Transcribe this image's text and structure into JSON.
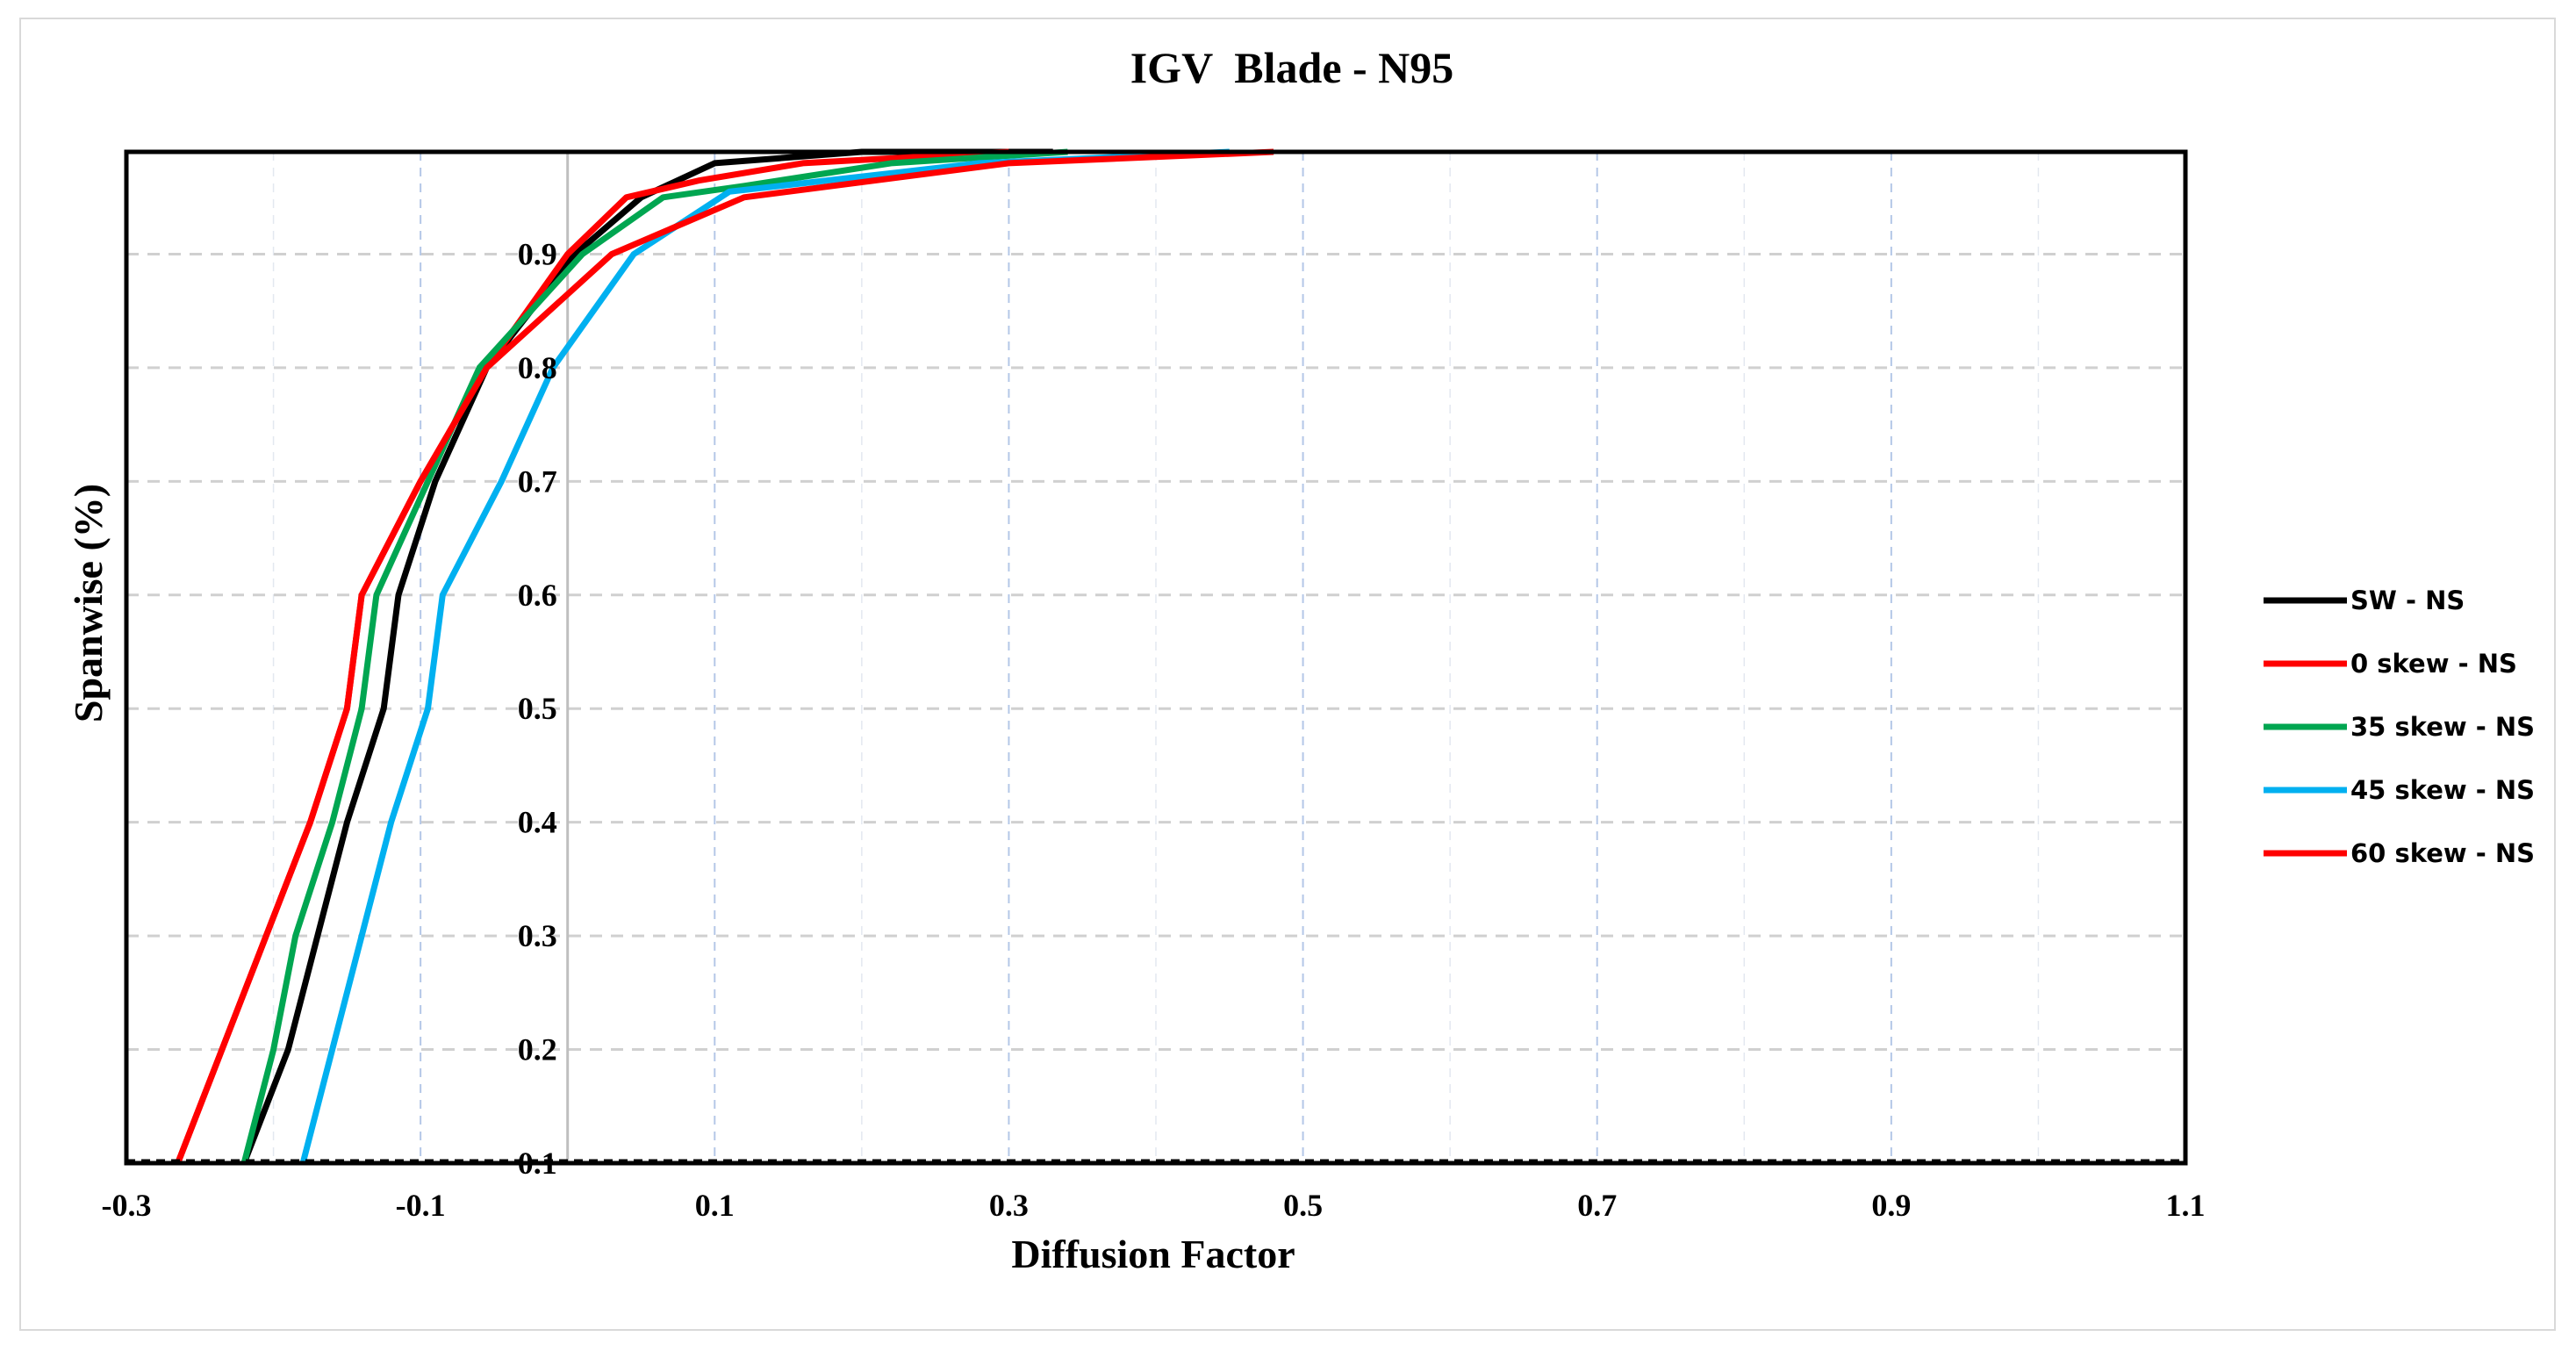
{
  "chart_data": {
    "type": "line",
    "title": "IGV  Blade - N95",
    "xlabel": "Diffusion Factor",
    "ylabel": "Spanwise (%)",
    "xlim": [
      -0.3,
      1.1
    ],
    "ylim": [
      0.1,
      0.99
    ],
    "x_major_ticks": [
      -0.3,
      -0.1,
      0.1,
      0.3,
      0.5,
      0.7,
      0.9,
      1.1
    ],
    "x_tick_labels": [
      "-0.3",
      "-0.1",
      "0.1",
      "0.3",
      "0.5",
      "0.7",
      "0.9",
      "1.1"
    ],
    "x_vgrid": [
      -0.1,
      0.1,
      0.3,
      0.5,
      0.7,
      0.9
    ],
    "x_vgrid_minor": [
      -0.2,
      0.0,
      0.2,
      0.4,
      0.6,
      0.8,
      1.0
    ],
    "y_ticks": [
      0.1,
      0.2,
      0.3,
      0.4,
      0.5,
      0.6,
      0.7,
      0.8,
      0.9
    ],
    "y_tick_labels": [
      "0.1",
      "0.2",
      "0.3",
      "0.4",
      "0.5",
      "0.6",
      "0.7",
      "0.8",
      "0.9"
    ],
    "y_axis_at_x": 0.0,
    "grid": true,
    "legend_position": "right",
    "series": [
      {
        "name": "SW - NS",
        "color": "#000000",
        "points": [
          [
            -0.22,
            0.1
          ],
          [
            -0.19,
            0.2
          ],
          [
            -0.17,
            0.3
          ],
          [
            -0.15,
            0.4
          ],
          [
            -0.125,
            0.5
          ],
          [
            -0.115,
            0.6
          ],
          [
            -0.09,
            0.7
          ],
          [
            -0.055,
            0.8
          ],
          [
            0.005,
            0.9
          ],
          [
            0.05,
            0.95
          ],
          [
            0.1,
            0.98
          ],
          [
            0.2,
            0.99
          ],
          [
            0.33,
            0.99
          ]
        ]
      },
      {
        "name": "0 skew - NS",
        "color": "#ff0000",
        "points": [
          [
            -0.265,
            0.1
          ],
          [
            -0.235,
            0.2
          ],
          [
            -0.205,
            0.3
          ],
          [
            -0.175,
            0.4
          ],
          [
            -0.15,
            0.5
          ],
          [
            -0.14,
            0.6
          ],
          [
            -0.1,
            0.7
          ],
          [
            -0.055,
            0.8
          ],
          [
            0.0,
            0.9
          ],
          [
            0.04,
            0.95
          ],
          [
            0.09,
            0.965
          ],
          [
            0.16,
            0.98
          ],
          [
            0.3,
            0.99
          ]
        ]
      },
      {
        "name": "35 skew - NS",
        "color": "#00a651",
        "points": [
          [
            -0.22,
            0.1
          ],
          [
            -0.2,
            0.2
          ],
          [
            -0.185,
            0.3
          ],
          [
            -0.16,
            0.4
          ],
          [
            -0.14,
            0.5
          ],
          [
            -0.13,
            0.6
          ],
          [
            -0.095,
            0.7
          ],
          [
            -0.06,
            0.8
          ],
          [
            0.01,
            0.9
          ],
          [
            0.065,
            0.95
          ],
          [
            0.12,
            0.96
          ],
          [
            0.22,
            0.98
          ],
          [
            0.34,
            0.99
          ]
        ]
      },
      {
        "name": "45 skew - NS",
        "color": "#00b0f0",
        "points": [
          [
            -0.18,
            0.1
          ],
          [
            -0.16,
            0.2
          ],
          [
            -0.14,
            0.3
          ],
          [
            -0.12,
            0.4
          ],
          [
            -0.095,
            0.5
          ],
          [
            -0.085,
            0.6
          ],
          [
            -0.045,
            0.7
          ],
          [
            -0.01,
            0.8
          ],
          [
            0.045,
            0.9
          ],
          [
            0.11,
            0.955
          ],
          [
            0.28,
            0.98
          ],
          [
            0.45,
            0.99
          ]
        ]
      },
      {
        "name": "60 skew - NS",
        "color": "#ff0000",
        "points": [
          [
            -0.265,
            0.1
          ],
          [
            -0.235,
            0.2
          ],
          [
            -0.205,
            0.3
          ],
          [
            -0.175,
            0.4
          ],
          [
            -0.15,
            0.5
          ],
          [
            -0.14,
            0.6
          ],
          [
            -0.1,
            0.7
          ],
          [
            -0.055,
            0.8
          ],
          [
            0.03,
            0.9
          ],
          [
            0.12,
            0.95
          ],
          [
            0.3,
            0.98
          ],
          [
            0.48,
            0.99
          ]
        ]
      }
    ]
  }
}
